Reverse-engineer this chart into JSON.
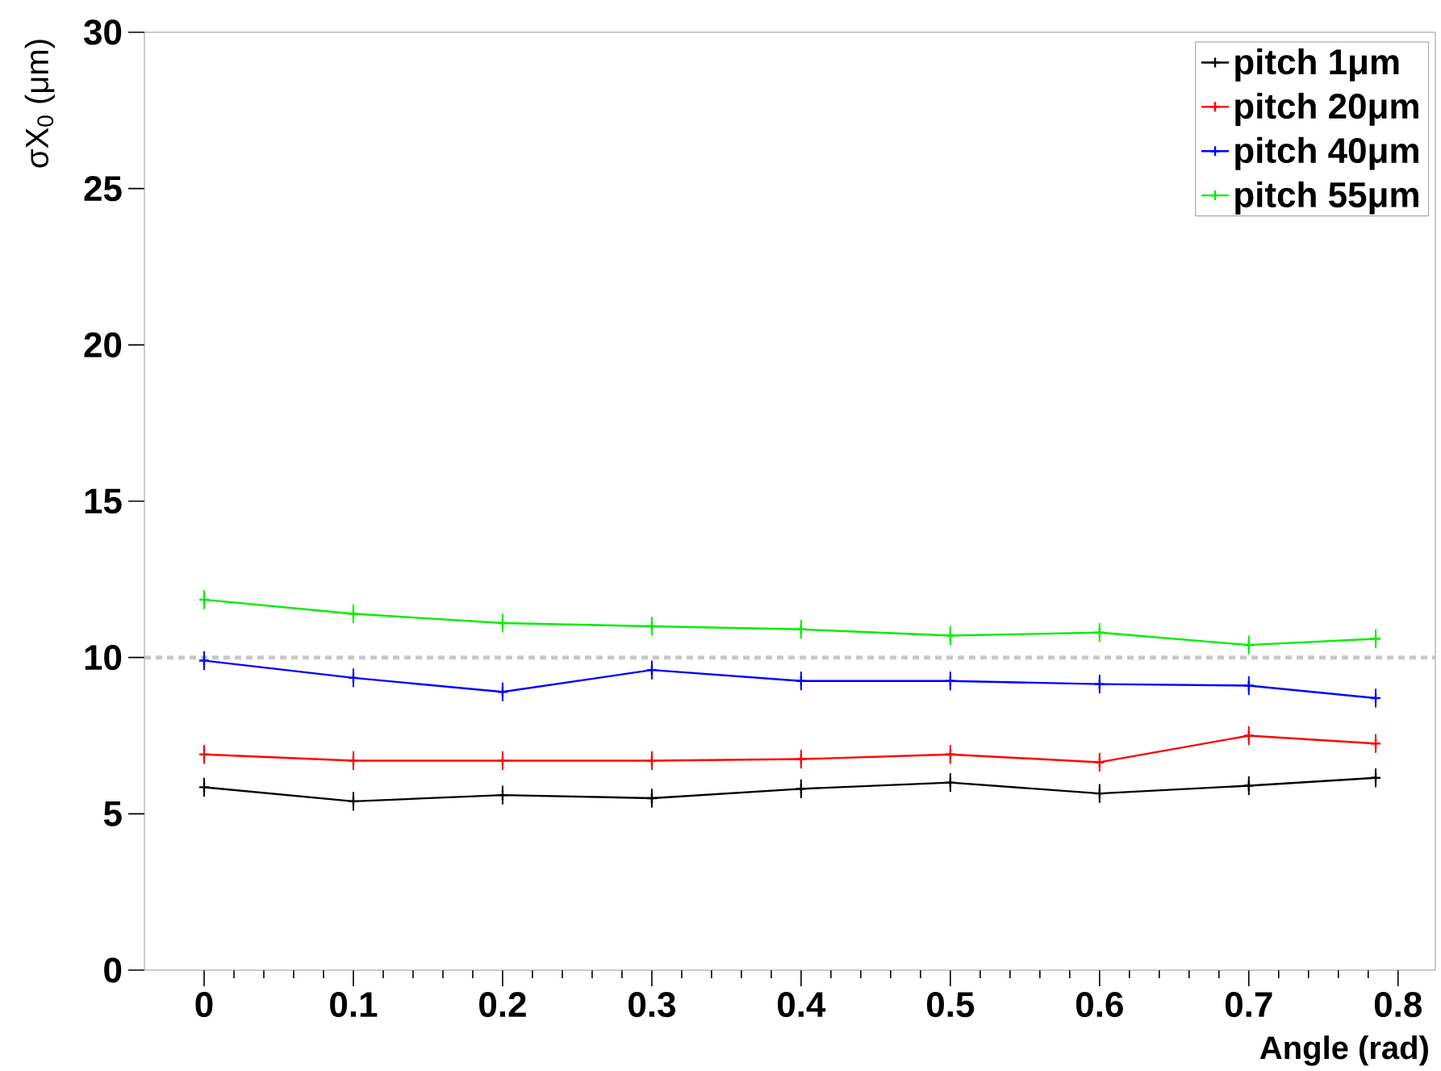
{
  "chart_data": {
    "type": "line",
    "xlabel": "Angle (rad)",
    "ylabel": "σX$_{0}$ (μm)",
    "x": [
      0,
      0.1,
      0.2,
      0.3,
      0.4,
      0.5,
      0.6,
      0.7,
      0.785
    ],
    "series": [
      {
        "name": "pitch 1μm",
        "color": "#000000",
        "values": [
          5.85,
          5.4,
          5.6,
          5.5,
          5.8,
          6.0,
          5.65,
          5.9,
          6.15
        ],
        "errors": [
          0.3,
          0.3,
          0.3,
          0.3,
          0.3,
          0.3,
          0.3,
          0.3,
          0.3
        ]
      },
      {
        "name": "pitch 20μm",
        "color": "#ff0000",
        "values": [
          6.9,
          6.7,
          6.7,
          6.7,
          6.75,
          6.9,
          6.65,
          7.5,
          7.25
        ],
        "errors": [
          0.3,
          0.3,
          0.3,
          0.3,
          0.3,
          0.3,
          0.3,
          0.3,
          0.3
        ]
      },
      {
        "name": "pitch 40μm",
        "color": "#0000ff",
        "values": [
          9.9,
          9.35,
          8.9,
          9.6,
          9.25,
          9.25,
          9.15,
          9.1,
          8.7
        ],
        "errors": [
          0.3,
          0.3,
          0.3,
          0.3,
          0.3,
          0.3,
          0.3,
          0.3,
          0.3
        ]
      },
      {
        "name": "pitch 55μm",
        "color": "#00ee00",
        "values": [
          11.85,
          11.4,
          11.1,
          11.0,
          10.9,
          10.7,
          10.8,
          10.4,
          10.6
        ],
        "errors": [
          0.3,
          0.3,
          0.3,
          0.3,
          0.3,
          0.3,
          0.3,
          0.3,
          0.3
        ]
      }
    ],
    "xlim": [
      -0.04,
      0.825
    ],
    "ylim": [
      0,
      30
    ],
    "xticks": [
      0,
      0.1,
      0.2,
      0.3,
      0.4,
      0.5,
      0.6,
      0.7,
      0.8
    ],
    "yticks": [
      0,
      5,
      10,
      15,
      20,
      25,
      30
    ],
    "ref_lines": [
      {
        "axis": "y",
        "value": 10,
        "color": "#c8c8c8",
        "line_style": "dotted"
      }
    ],
    "legend": "top right",
    "marker": "cross",
    "line_style": "solid",
    "grid": false
  }
}
